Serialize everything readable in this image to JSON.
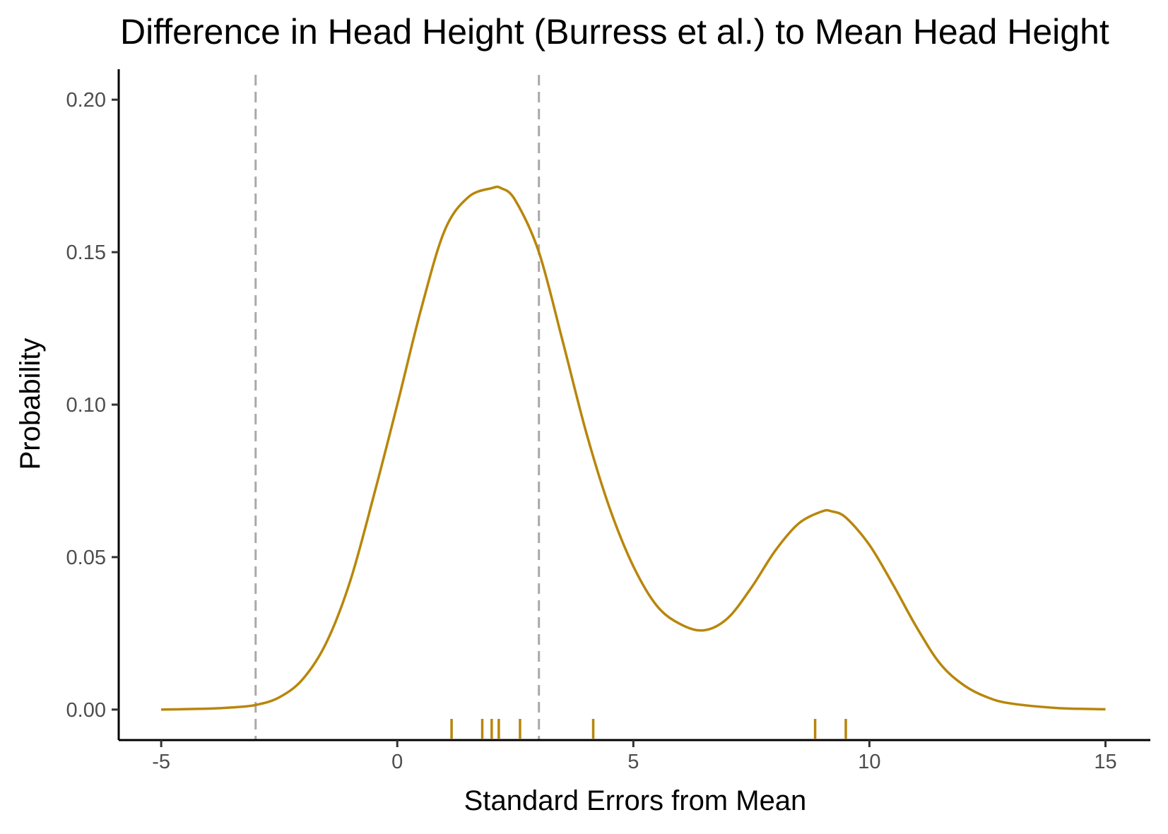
{
  "chart_data": {
    "type": "line",
    "title": "Difference in Head Height (Burress et al.) to Mean Head Height",
    "xlabel": "Standard Errors from Mean",
    "ylabel": "Probability",
    "xlim": [
      -5.9,
      15.95
    ],
    "ylim": [
      -0.01,
      0.21
    ],
    "x_ticks": [
      -5,
      0,
      5,
      10,
      15
    ],
    "x_tick_labels": [
      "-5",
      "0",
      "5",
      "10",
      "15"
    ],
    "y_ticks": [
      0,
      0.05,
      0.1,
      0.15,
      0.2
    ],
    "y_tick_labels": [
      "0.00",
      "0.05",
      "0.10",
      "0.15",
      "0.20"
    ],
    "grid": false,
    "series": [
      {
        "color": "#b8860b",
        "x": [
          -5,
          -4,
          -3.5,
          -3,
          -2.5,
          -2,
          -1.5,
          -1,
          -0.5,
          0,
          0.5,
          1,
          1.5,
          2,
          2.2,
          2.5,
          3,
          3.5,
          4,
          4.5,
          5,
          5.5,
          6,
          6.5,
          7,
          7.5,
          8,
          8.5,
          9,
          9.2,
          9.5,
          10,
          10.5,
          11,
          11.5,
          12,
          12.5,
          13,
          14,
          15
        ],
        "y": [
          0.0,
          0.0003,
          0.0007,
          0.0015,
          0.004,
          0.01,
          0.022,
          0.042,
          0.07,
          0.1,
          0.131,
          0.157,
          0.168,
          0.171,
          0.171,
          0.167,
          0.15,
          0.121,
          0.091,
          0.066,
          0.047,
          0.034,
          0.028,
          0.026,
          0.03,
          0.04,
          0.052,
          0.061,
          0.065,
          0.065,
          0.063,
          0.054,
          0.041,
          0.027,
          0.015,
          0.008,
          0.004,
          0.002,
          0.0005,
          0.0001
        ]
      }
    ],
    "reference_lines_x": [
      -3,
      3
    ],
    "reference_line_color": "#a9a9a9",
    "rug_x": [
      1.15,
      1.8,
      2.0,
      2.15,
      2.6,
      4.15,
      8.85,
      9.5
    ],
    "rug_color": "#b8860b"
  }
}
